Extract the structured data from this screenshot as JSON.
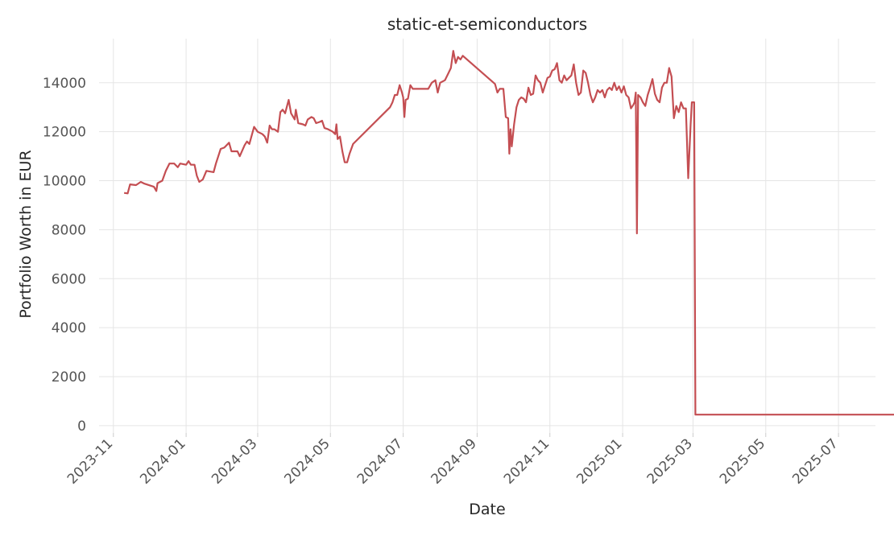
{
  "chart_data": {
    "type": "line",
    "title": "static-et-semiconductors",
    "xlabel": "Date",
    "ylabel": "Portfolio Worth in EUR",
    "x_ticks": [
      "2023-11",
      "2024-01",
      "2024-03",
      "2024-05",
      "2024-07",
      "2024-09",
      "2024-11",
      "2025-01",
      "2025-03",
      "2025-05",
      "2025-07"
    ],
    "y_ticks": [
      0,
      2000,
      4000,
      6000,
      8000,
      10000,
      12000,
      14000
    ],
    "xlim": [
      "2023-10-20",
      "2025-08-01"
    ],
    "ylim": [
      -300,
      15800
    ],
    "grid": true,
    "legend": "none",
    "color": "#c44e52",
    "series": [
      {
        "points": [
          [
            "2023-11-10",
            9500
          ],
          [
            "2023-11-13",
            9480
          ],
          [
            "2023-11-15",
            9850
          ],
          [
            "2023-11-20",
            9820
          ],
          [
            "2023-11-24",
            9950
          ],
          [
            "2023-11-27",
            9880
          ],
          [
            "2023-12-05",
            9750
          ],
          [
            "2023-12-07",
            9580
          ],
          [
            "2023-12-08",
            9900
          ],
          [
            "2023-12-12",
            10000
          ],
          [
            "2023-12-15",
            10400
          ],
          [
            "2023-12-18",
            10700
          ],
          [
            "2023-12-22",
            10700
          ],
          [
            "2023-12-25",
            10550
          ],
          [
            "2023-12-27",
            10700
          ],
          [
            "2024-01-01",
            10650
          ],
          [
            "2024-01-03",
            10800
          ],
          [
            "2024-01-05",
            10650
          ],
          [
            "2024-01-08",
            10650
          ],
          [
            "2024-01-10",
            10200
          ],
          [
            "2024-01-12",
            9950
          ],
          [
            "2024-01-15",
            10050
          ],
          [
            "2024-01-18",
            10400
          ],
          [
            "2024-01-24",
            10350
          ],
          [
            "2024-01-26",
            10700
          ],
          [
            "2024-01-30",
            11300
          ],
          [
            "2024-02-02",
            11350
          ],
          [
            "2024-02-06",
            11550
          ],
          [
            "2024-02-08",
            11200
          ],
          [
            "2024-02-13",
            11200
          ],
          [
            "2024-02-15",
            11000
          ],
          [
            "2024-02-19",
            11450
          ],
          [
            "2024-02-21",
            11600
          ],
          [
            "2024-02-23",
            11500
          ],
          [
            "2024-02-27",
            12200
          ],
          [
            "2024-03-01",
            12000
          ],
          [
            "2024-03-05",
            11900
          ],
          [
            "2024-03-07",
            11800
          ],
          [
            "2024-03-09",
            11550
          ],
          [
            "2024-03-11",
            12250
          ],
          [
            "2024-03-13",
            12100
          ],
          [
            "2024-03-15",
            12100
          ],
          [
            "2024-03-18",
            12000
          ],
          [
            "2024-03-20",
            12800
          ],
          [
            "2024-03-22",
            12900
          ],
          [
            "2024-03-24",
            12750
          ],
          [
            "2024-03-27",
            13300
          ],
          [
            "2024-03-29",
            12750
          ],
          [
            "2024-04-01",
            12500
          ],
          [
            "2024-04-02",
            12900
          ],
          [
            "2024-04-04",
            12350
          ],
          [
            "2024-04-08",
            12300
          ],
          [
            "2024-04-10",
            12250
          ],
          [
            "2024-04-12",
            12500
          ],
          [
            "2024-04-15",
            12600
          ],
          [
            "2024-04-17",
            12550
          ],
          [
            "2024-04-19",
            12350
          ],
          [
            "2024-04-22",
            12400
          ],
          [
            "2024-04-24",
            12450
          ],
          [
            "2024-04-26",
            12150
          ],
          [
            "2024-04-29",
            12100
          ],
          [
            "2024-05-03",
            12000
          ],
          [
            "2024-05-05",
            11900
          ],
          [
            "2024-05-06",
            12300
          ],
          [
            "2024-05-07",
            11700
          ],
          [
            "2024-05-09",
            11800
          ],
          [
            "2024-05-11",
            11200
          ],
          [
            "2024-05-13",
            10750
          ],
          [
            "2024-05-15",
            10750
          ],
          [
            "2024-05-17",
            11100
          ],
          [
            "2024-05-20",
            11500
          ],
          [
            "2024-06-20",
            13000
          ],
          [
            "2024-06-22",
            13200
          ],
          [
            "2024-06-24",
            13500
          ],
          [
            "2024-06-26",
            13500
          ],
          [
            "2024-06-28",
            13900
          ],
          [
            "2024-06-30",
            13600
          ],
          [
            "2024-07-01",
            13400
          ],
          [
            "2024-07-02",
            12600
          ],
          [
            "2024-07-03",
            13300
          ],
          [
            "2024-07-05",
            13350
          ],
          [
            "2024-07-07",
            13900
          ],
          [
            "2024-07-09",
            13750
          ],
          [
            "2024-07-22",
            13750
          ],
          [
            "2024-07-25",
            14000
          ],
          [
            "2024-07-28",
            14100
          ],
          [
            "2024-07-30",
            13600
          ],
          [
            "2024-08-01",
            14000
          ],
          [
            "2024-08-05",
            14100
          ],
          [
            "2024-08-08",
            14400
          ],
          [
            "2024-08-10",
            14600
          ],
          [
            "2024-08-12",
            15300
          ],
          [
            "2024-08-14",
            14800
          ],
          [
            "2024-08-16",
            15050
          ],
          [
            "2024-08-18",
            14950
          ],
          [
            "2024-08-20",
            15100
          ],
          [
            "2024-09-16",
            13950
          ],
          [
            "2024-09-18",
            13600
          ],
          [
            "2024-09-20",
            13750
          ],
          [
            "2024-09-23",
            13750
          ],
          [
            "2024-09-25",
            12600
          ],
          [
            "2024-09-27",
            12550
          ],
          [
            "2024-09-28",
            11100
          ],
          [
            "2024-09-29",
            12100
          ],
          [
            "2024-09-30",
            11400
          ],
          [
            "2024-10-02",
            12300
          ],
          [
            "2024-10-04",
            13000
          ],
          [
            "2024-10-06",
            13300
          ],
          [
            "2024-10-08",
            13400
          ],
          [
            "2024-10-10",
            13350
          ],
          [
            "2024-10-12",
            13200
          ],
          [
            "2024-10-14",
            13800
          ],
          [
            "2024-10-16",
            13500
          ],
          [
            "2024-10-18",
            13550
          ],
          [
            "2024-10-20",
            14300
          ],
          [
            "2024-10-22",
            14100
          ],
          [
            "2024-10-24",
            14000
          ],
          [
            "2024-10-26",
            13600
          ],
          [
            "2024-10-28",
            13900
          ],
          [
            "2024-10-30",
            14200
          ],
          [
            "2024-11-01",
            14250
          ],
          [
            "2024-11-03",
            14500
          ],
          [
            "2024-11-05",
            14550
          ],
          [
            "2024-11-07",
            14800
          ],
          [
            "2024-11-09",
            14100
          ],
          [
            "2024-11-11",
            14000
          ],
          [
            "2024-11-13",
            14300
          ],
          [
            "2024-11-15",
            14100
          ],
          [
            "2024-11-17",
            14200
          ],
          [
            "2024-11-19",
            14300
          ],
          [
            "2024-11-21",
            14750
          ],
          [
            "2024-11-23",
            14000
          ],
          [
            "2024-11-25",
            13500
          ],
          [
            "2024-11-27",
            13600
          ],
          [
            "2024-11-29",
            14500
          ],
          [
            "2024-12-01",
            14400
          ],
          [
            "2024-12-03",
            14000
          ],
          [
            "2024-12-05",
            13500
          ],
          [
            "2024-12-07",
            13200
          ],
          [
            "2024-12-09",
            13400
          ],
          [
            "2024-12-11",
            13700
          ],
          [
            "2024-12-13",
            13600
          ],
          [
            "2024-12-15",
            13700
          ],
          [
            "2024-12-17",
            13400
          ],
          [
            "2024-12-19",
            13700
          ],
          [
            "2024-12-21",
            13800
          ],
          [
            "2024-12-23",
            13700
          ],
          [
            "2024-12-25",
            14000
          ],
          [
            "2024-12-27",
            13700
          ],
          [
            "2024-12-29",
            13850
          ],
          [
            "2024-12-31",
            13600
          ],
          [
            "2025-01-02",
            13850
          ],
          [
            "2025-01-04",
            13500
          ],
          [
            "2025-01-06",
            13400
          ],
          [
            "2025-01-08",
            12950
          ],
          [
            "2025-01-10",
            13100
          ],
          [
            "2025-01-11",
            13200
          ],
          [
            "2025-01-12",
            13600
          ],
          [
            "2025-01-13",
            7850
          ],
          [
            "2025-01-14",
            13500
          ],
          [
            "2025-01-16",
            13400
          ],
          [
            "2025-01-18",
            13200
          ],
          [
            "2025-01-20",
            13050
          ],
          [
            "2025-01-22",
            13500
          ],
          [
            "2025-01-24",
            13800
          ],
          [
            "2025-01-26",
            14150
          ],
          [
            "2025-01-28",
            13550
          ],
          [
            "2025-01-30",
            13300
          ],
          [
            "2025-02-01",
            13200
          ],
          [
            "2025-02-03",
            13800
          ],
          [
            "2025-02-05",
            14000
          ],
          [
            "2025-02-07",
            14000
          ],
          [
            "2025-02-09",
            14600
          ],
          [
            "2025-02-11",
            14250
          ],
          [
            "2025-02-13",
            12550
          ],
          [
            "2025-02-15",
            13050
          ],
          [
            "2025-02-17",
            12800
          ],
          [
            "2025-02-19",
            13200
          ],
          [
            "2025-02-21",
            12950
          ],
          [
            "2025-02-23",
            12950
          ],
          [
            "2025-02-25",
            10100
          ],
          [
            "2025-02-27",
            12300
          ],
          [
            "2025-02-28",
            13200
          ],
          [
            "2025-03-02",
            13200
          ],
          [
            "2025-03-03",
            450
          ],
          [
            "2025-08-20",
            450
          ]
        ]
      }
    ]
  }
}
